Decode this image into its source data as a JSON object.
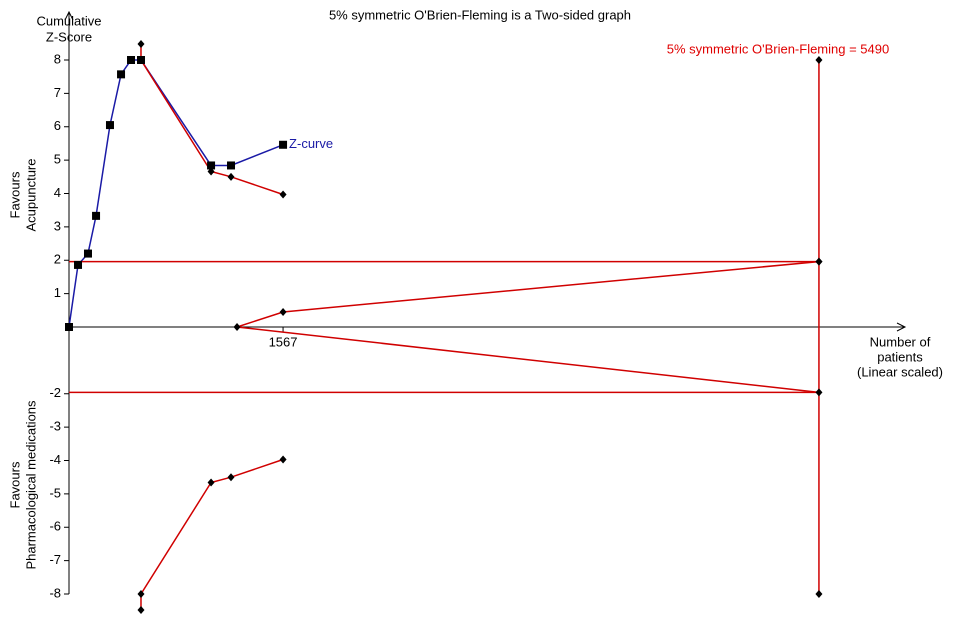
{
  "chart_data": {
    "type": "line",
    "title": "5% symmetric O'Brien-Fleming is a Two-sided graph",
    "y_label": [
      "Cumulative",
      "Z-Score"
    ],
    "x_label": [
      "Number of",
      "patients",
      "(Linear scaled)"
    ],
    "upper_region_label": [
      "Favours",
      "Acupuncture"
    ],
    "lower_region_label": [
      "Favours",
      "Pharmacological medications"
    ],
    "annotation": {
      "text": "5% symmetric O'Brien-Fleming = 5490",
      "color": "#e00000"
    },
    "xlim": [
      0,
      6120
    ],
    "ylim": [
      -8,
      8
    ],
    "xticks": [
      1567
    ],
    "yticks": [
      -8,
      -7,
      -6,
      -5,
      -4,
      -3,
      -2,
      1,
      2,
      3,
      4,
      5,
      6,
      7,
      8
    ],
    "series": [
      {
        "name": "Z-curve",
        "color": "#1a1aa6",
        "marker": "square",
        "x": [
          0,
          66,
          139,
          198,
          300,
          381,
          454,
          527,
          1040,
          1186,
          1567
        ],
        "values": [
          0,
          1.86,
          2.2,
          3.33,
          6.05,
          7.57,
          8.0,
          8.0,
          4.84,
          4.84,
          5.46
        ]
      },
      {
        "color": "#d00000",
        "marker": "diamond",
        "x": [
          527,
          527,
          1040,
          1186,
          1567
        ],
        "values": [
          8.48,
          8.0,
          4.66,
          4.5,
          3.97
        ]
      },
      {
        "color": "#d00000",
        "marker": "diamond",
        "x": [
          527,
          527,
          1040,
          1186,
          1567
        ],
        "values": [
          -8.48,
          -8.0,
          -4.66,
          -4.5,
          -3.97
        ]
      },
      {
        "color": "#d00000",
        "marker": "diamond",
        "x": [
          1230,
          1567,
          5490
        ],
        "values": [
          0,
          0.45,
          1.96
        ]
      },
      {
        "color": "#d00000",
        "marker": "none",
        "x": [
          1230,
          5490
        ],
        "values": [
          0,
          -1.96
        ]
      },
      {
        "color": "#d00000",
        "marker": "none",
        "x": [
          0,
          5490
        ],
        "values": [
          1.96,
          1.96
        ]
      },
      {
        "color": "#d00000",
        "marker": "none",
        "x": [
          0,
          5490
        ],
        "values": [
          -1.96,
          -1.96
        ]
      },
      {
        "color": "#d00000",
        "marker": "diamond",
        "x": [
          5490,
          5490,
          5490,
          5490
        ],
        "values": [
          8,
          1.96,
          -1.96,
          -8
        ]
      }
    ]
  }
}
